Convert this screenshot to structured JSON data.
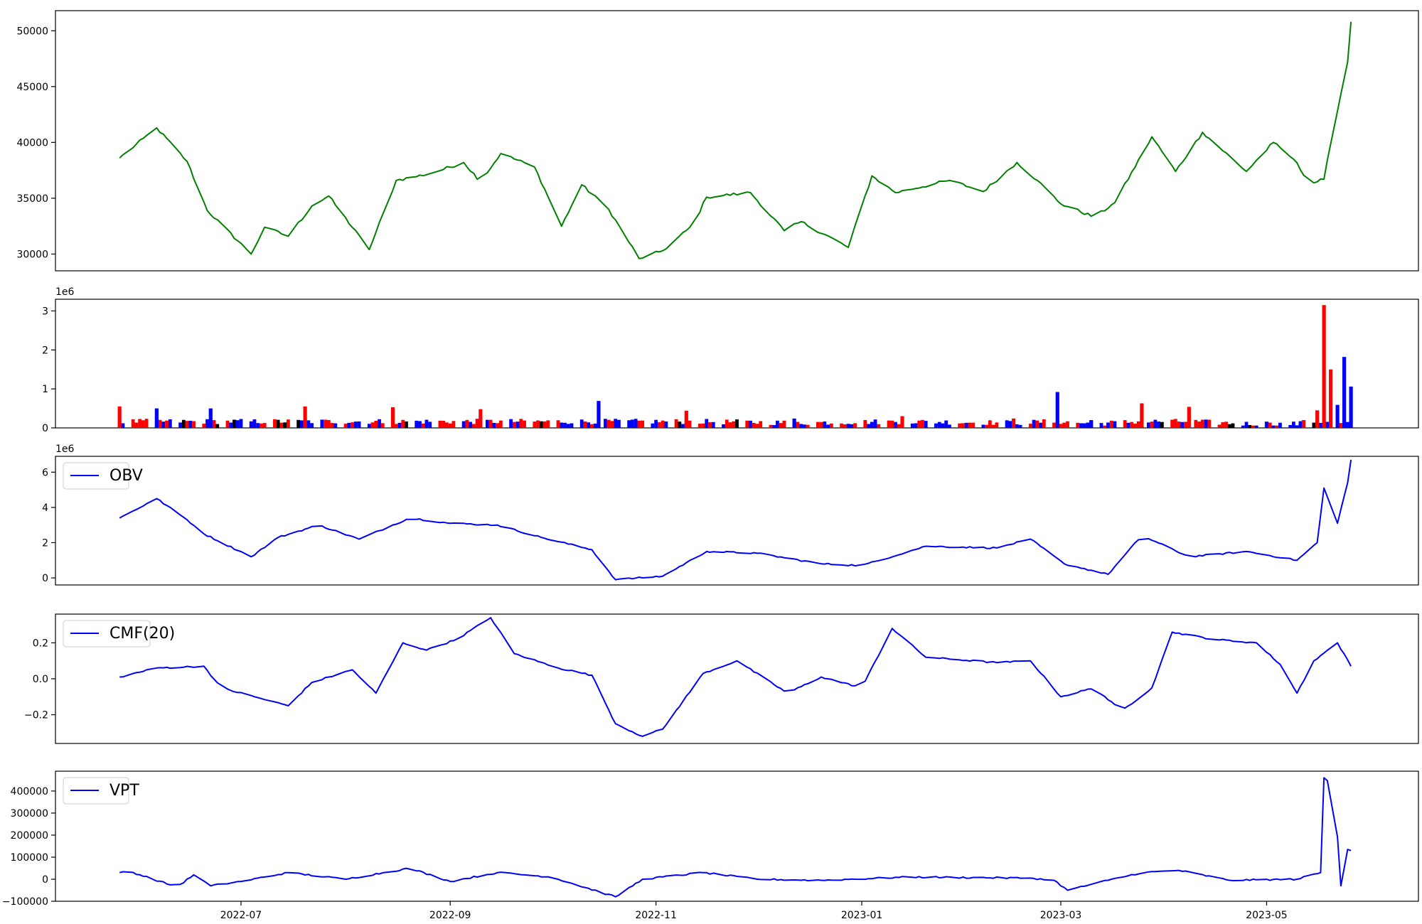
{
  "figure": {
    "x_tick_labels": [
      "2022-07",
      "2022-09",
      "2022-11",
      "2023-01",
      "2023-03",
      "2023-05"
    ],
    "x_tick_dates": [
      "2022-07-01",
      "2022-09-01",
      "2022-11-01",
      "2023-01-01",
      "2023-03-01",
      "2023-05-01"
    ],
    "date_range": [
      "2022-05-26",
      "2023-05-26"
    ],
    "x_axis_limits": [
      "2022-05-07",
      "2023-06-15"
    ]
  },
  "chart_data": [
    {
      "id": "price",
      "type": "line",
      "color": "#008000",
      "legend": "",
      "offset_label": "",
      "ylim": [
        28500,
        51800
      ],
      "yticks": [
        30000,
        35000,
        40000,
        45000,
        50000
      ],
      "ytick_labels": [
        "30000",
        "35000",
        "40000",
        "45000",
        "50000"
      ],
      "x": [
        "2022-05-26",
        "2022-06-06",
        "2022-06-15",
        "2022-06-21",
        "2022-07-04",
        "2022-07-08",
        "2022-07-15",
        "2022-07-22",
        "2022-07-27",
        "2022-08-08",
        "2022-08-16",
        "2022-08-26",
        "2022-09-05",
        "2022-09-10",
        "2022-09-16",
        "2022-09-26",
        "2022-10-04",
        "2022-10-10",
        "2022-10-18",
        "2022-10-27",
        "2022-11-03",
        "2022-11-12",
        "2022-11-16",
        "2022-11-29",
        "2022-12-09",
        "2022-12-14",
        "2022-12-28",
        "2023-01-04",
        "2023-01-11",
        "2023-01-27",
        "2023-02-06",
        "2023-02-16",
        "2023-02-22",
        "2023-03-01",
        "2023-03-11",
        "2023-03-17",
        "2023-03-28",
        "2023-04-04",
        "2023-04-12",
        "2023-04-25",
        "2023-05-03",
        "2023-05-09",
        "2023-05-14",
        "2023-05-18",
        "2023-05-21",
        "2023-05-25",
        "2023-05-26"
      ],
      "values": [
        38600,
        41300,
        38300,
        33900,
        30000,
        32400,
        31600,
        34300,
        35200,
        30400,
        36600,
        37200,
        38200,
        36500,
        39000,
        37800,
        32500,
        36200,
        34000,
        29600,
        30300,
        32600,
        35100,
        35500,
        32100,
        32900,
        30600,
        37000,
        35500,
        36600,
        35600,
        38200,
        36600,
        34500,
        33300,
        34600,
        40500,
        37400,
        40900,
        37400,
        40000,
        38500,
        36300,
        36700,
        41500,
        47200,
        50800
      ]
    },
    {
      "id": "volume",
      "type": "bar",
      "legend": "",
      "offset_label": "1e6",
      "ylim": [
        0,
        3300000
      ],
      "yticks": [
        0,
        1000000,
        2000000,
        3000000
      ],
      "ytick_labels": [
        "0",
        "1",
        "2",
        "3"
      ],
      "colors": {
        "up": "#ff0000",
        "down": "#0000ff",
        "flat": "#000000"
      },
      "x": [
        "2022-05-26",
        "2022-06-06",
        "2022-06-22",
        "2022-07-20",
        "2022-08-15",
        "2022-09-10",
        "2022-10-15",
        "2022-11-10",
        "2022-12-12",
        "2023-01-13",
        "2023-02-15",
        "2023-02-28",
        "2023-03-10",
        "2023-03-25",
        "2023-04-08",
        "2023-05-01",
        "2023-05-12",
        "2023-05-16",
        "2023-05-18",
        "2023-05-20",
        "2023-05-22",
        "2023-05-24",
        "2023-05-26"
      ],
      "values": [
        550000,
        500000,
        500000,
        550000,
        530000,
        480000,
        690000,
        440000,
        240000,
        300000,
        240000,
        920000,
        200000,
        630000,
        540000,
        160000,
        200000,
        450000,
        3150000,
        1500000,
        590000,
        1820000,
        1060000
      ],
      "directions": [
        "up",
        "down",
        "down",
        "up",
        "up",
        "up",
        "down",
        "up",
        "down",
        "up",
        "up",
        "down",
        "down",
        "up",
        "up",
        "down",
        "up",
        "up",
        "up",
        "up",
        "down",
        "down",
        "down"
      ]
    },
    {
      "id": "obv",
      "type": "line",
      "color": "#0000ff",
      "legend": "OBV",
      "offset_label": "1e6",
      "ylim": [
        -400000,
        6900000
      ],
      "yticks": [
        0,
        2000000,
        4000000,
        6000000
      ],
      "ytick_labels": [
        "0",
        "2",
        "4",
        "6"
      ],
      "x": [
        "2022-05-26",
        "2022-06-06",
        "2022-06-15",
        "2022-06-20",
        "2022-07-04",
        "2022-07-12",
        "2022-07-24",
        "2022-08-05",
        "2022-08-20",
        "2022-09-01",
        "2022-09-15",
        "2022-09-28",
        "2022-10-13",
        "2022-10-20",
        "2022-11-03",
        "2022-11-16",
        "2022-12-01",
        "2022-12-20",
        "2023-01-01",
        "2023-01-20",
        "2023-02-10",
        "2023-02-20",
        "2023-03-02",
        "2023-03-15",
        "2023-03-25",
        "2023-04-08",
        "2023-04-25",
        "2023-05-10",
        "2023-05-16",
        "2023-05-18",
        "2023-05-22",
        "2023-05-25",
        "2023-05-26"
      ],
      "values": [
        3400000,
        4500000,
        3300000,
        2500000,
        1200000,
        2300000,
        3000000,
        2200000,
        3400000,
        3100000,
        3000000,
        2300000,
        1600000,
        -100000,
        100000,
        1500000,
        1400000,
        800000,
        700000,
        1800000,
        1700000,
        2200000,
        800000,
        200000,
        2400000,
        1200000,
        1500000,
        1000000,
        2000000,
        5100000,
        3100000,
        5400000,
        6700000
      ]
    },
    {
      "id": "cmf",
      "type": "line",
      "color": "#0000ff",
      "legend": "CMF(20)",
      "offset_label": "",
      "ylim": [
        -0.36,
        0.36
      ],
      "yticks": [
        -0.2,
        0,
        0.2
      ],
      "ytick_labels": [
        "−0.2",
        "0.0",
        "0.2"
      ],
      "x": [
        "2022-05-26",
        "2022-06-06",
        "2022-06-20",
        "2022-06-25",
        "2022-07-05",
        "2022-07-15",
        "2022-07-22",
        "2022-08-03",
        "2022-08-10",
        "2022-08-18",
        "2022-08-25",
        "2022-09-03",
        "2022-09-13",
        "2022-09-20",
        "2022-10-03",
        "2022-10-13",
        "2022-10-20",
        "2022-10-28",
        "2022-11-03",
        "2022-11-15",
        "2022-11-25",
        "2022-12-10",
        "2022-12-20",
        "2023-01-01",
        "2023-01-10",
        "2023-01-20",
        "2023-02-10",
        "2023-02-20",
        "2023-03-01",
        "2023-03-11",
        "2023-03-19",
        "2023-03-28",
        "2023-04-03",
        "2023-04-15",
        "2023-04-28",
        "2023-05-05",
        "2023-05-10",
        "2023-05-15",
        "2023-05-22",
        "2023-05-26"
      ],
      "values": [
        0.01,
        0.06,
        0.07,
        -0.05,
        -0.1,
        -0.15,
        -0.02,
        0.05,
        -0.08,
        0.2,
        0.16,
        0.22,
        0.34,
        0.14,
        0.06,
        0.02,
        -0.25,
        -0.32,
        -0.28,
        0.03,
        0.1,
        -0.08,
        0.01,
        -0.05,
        0.28,
        0.12,
        0.09,
        0.1,
        -0.1,
        -0.05,
        -0.18,
        -0.05,
        0.26,
        0.22,
        0.2,
        0.08,
        -0.08,
        0.1,
        0.2,
        0.07
      ]
    },
    {
      "id": "vpt",
      "type": "line",
      "color": "#0000ff",
      "legend": "VPT",
      "offset_label": "",
      "ylim": [
        -100000,
        490000
      ],
      "yticks": [
        -100000,
        0,
        100000,
        200000,
        300000,
        400000
      ],
      "ytick_labels": [
        "−100000",
        "0",
        "100000",
        "200000",
        "300000",
        "400000"
      ],
      "x": [
        "2022-05-26",
        "2022-05-28",
        "2022-06-04",
        "2022-06-12",
        "2022-06-17",
        "2022-06-22",
        "2022-07-01",
        "2022-07-15",
        "2022-08-01",
        "2022-08-20",
        "2022-09-01",
        "2022-09-15",
        "2022-10-01",
        "2022-10-20",
        "2022-10-28",
        "2022-11-15",
        "2022-12-01",
        "2022-12-20",
        "2023-01-15",
        "2023-02-20",
        "2023-02-27",
        "2023-03-03",
        "2023-03-15",
        "2023-03-25",
        "2023-04-05",
        "2023-04-20",
        "2023-05-10",
        "2023-05-17",
        "2023-05-18",
        "2023-05-21",
        "2023-05-23",
        "2023-05-25",
        "2023-05-26"
      ],
      "values": [
        30000,
        40000,
        5000,
        -35000,
        20000,
        -30000,
        -10000,
        30000,
        0,
        50000,
        -10000,
        30000,
        10000,
        -80000,
        0,
        30000,
        0,
        -5000,
        10000,
        5000,
        -5000,
        -50000,
        -5000,
        30000,
        40000,
        -5000,
        0,
        30000,
        460000,
        415000,
        -30000,
        135000,
        130000
      ]
    }
  ]
}
